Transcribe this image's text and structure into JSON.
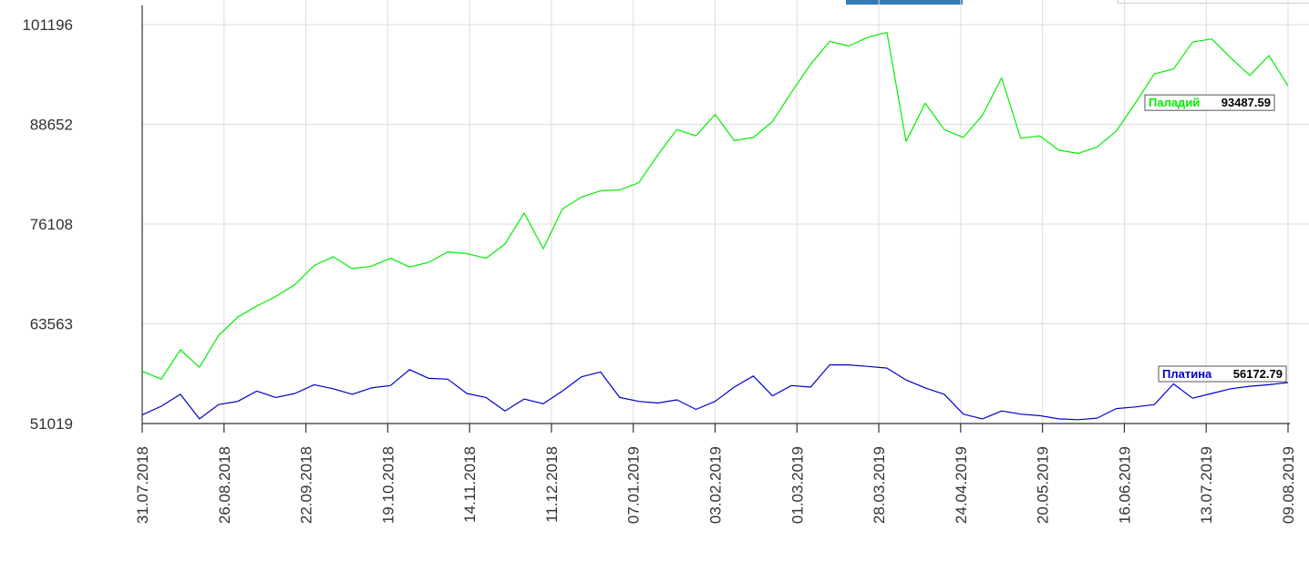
{
  "chart_data": {
    "type": "line",
    "x_ticks": [
      "31.07.2018",
      "26.08.2018",
      "22.09.2018",
      "19.10.2018",
      "14.11.2018",
      "11.12.2018",
      "07.01.2019",
      "03.02.2019",
      "01.03.2019",
      "28.03.2019",
      "24.04.2019",
      "20.05.2019",
      "16.06.2019",
      "13.07.2019",
      "09.08.2019"
    ],
    "y_ticks": [
      "101196",
      "88652",
      "76108",
      "63563",
      "51019"
    ],
    "ylim": [
      51019,
      101196
    ],
    "grid": true,
    "series": [
      {
        "name": "Паладий",
        "color": "#00ee00",
        "last_value": "93487.59",
        "values": [
          57600,
          56600,
          60300,
          58100,
          62100,
          64400,
          65800,
          67000,
          68500,
          70900,
          72000,
          70500,
          70800,
          71800,
          70700,
          71300,
          72600,
          72400,
          71800,
          73600,
          77500,
          73000,
          78000,
          79500,
          80300,
          80400,
          81300,
          84800,
          88000,
          87200,
          89900,
          86600,
          87000,
          89000,
          92700,
          96200,
          99100,
          98500,
          99600,
          100200,
          86500,
          91300,
          88000,
          87000,
          89800,
          94500,
          86900,
          87200,
          85400,
          85000,
          85800,
          87800,
          91300,
          95000,
          95600,
          99000,
          99400,
          97000,
          94800,
          97300,
          93500
        ]
      },
      {
        "name": "Платина",
        "color": "#0000cc",
        "last_value": "56172.79",
        "values": [
          52100,
          53200,
          54700,
          51600,
          53400,
          53800,
          55100,
          54300,
          54800,
          55900,
          55400,
          54700,
          55500,
          55800,
          57800,
          56700,
          56600,
          54800,
          54300,
          52600,
          54100,
          53500,
          55100,
          56900,
          57500,
          54300,
          53800,
          53600,
          54000,
          52800,
          53800,
          55600,
          57000,
          54500,
          55800,
          55600,
          58400,
          58400,
          58200,
          58000,
          56500,
          55500,
          54700,
          52200,
          51600,
          52600,
          52200,
          52000,
          51600,
          51500,
          51700,
          52900,
          53100,
          53400,
          56000,
          54200,
          54800,
          55400,
          55700,
          55900,
          56173
        ]
      }
    ]
  }
}
